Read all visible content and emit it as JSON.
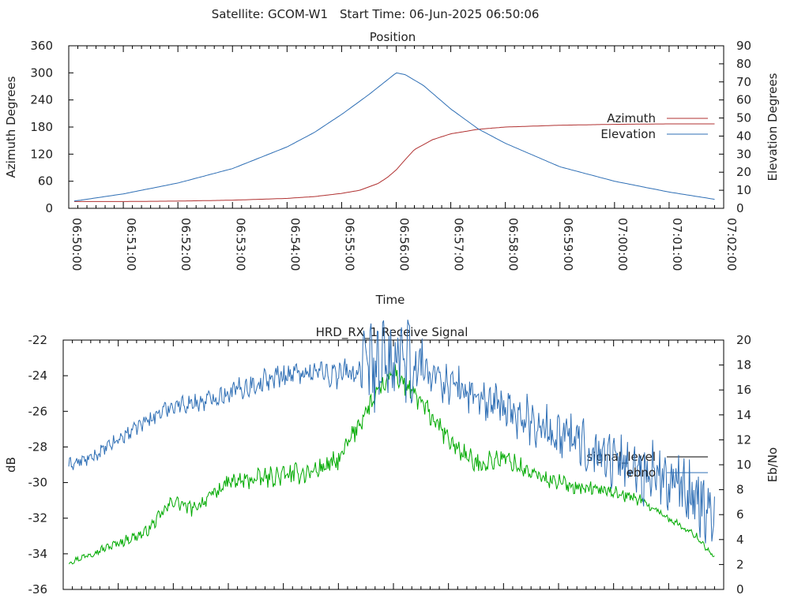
{
  "header": {
    "satellite": "Satellite: GCOM-W1",
    "start_time": "Start Time: 06-Jun-2025 06:50:06"
  },
  "chart_data": [
    {
      "type": "line",
      "title": "Position",
      "xlabel": "Time",
      "ylabel": "Azimuth Degrees",
      "y2label": "Elevation Degrees",
      "x_ticks": [
        "06:50:00",
        "06:51:00",
        "06:52:00",
        "06:53:00",
        "06:54:00",
        "06:55:00",
        "06:56:00",
        "06:57:00",
        "06:58:00",
        "06:59:00",
        "07:00:00",
        "07:01:00",
        "07:02:00"
      ],
      "xlim": [
        "06:50:00",
        "07:02:00"
      ],
      "ylim": [
        0,
        360
      ],
      "y_ticks": [
        0,
        60,
        120,
        180,
        240,
        300,
        360
      ],
      "y2lim": [
        0,
        90
      ],
      "y2_ticks": [
        0,
        10,
        20,
        30,
        40,
        50,
        60,
        70,
        80,
        90
      ],
      "legend_position": "right",
      "series": [
        {
          "name": "Azimuth",
          "axis": "y",
          "color": "#b03030",
          "x": [
            "06:50:06",
            "06:51:00",
            "06:52:00",
            "06:53:00",
            "06:54:00",
            "06:54:30",
            "06:55:00",
            "06:55:20",
            "06:55:40",
            "06:55:50",
            "06:56:00",
            "06:56:10",
            "06:56:20",
            "06:56:40",
            "06:57:00",
            "06:57:30",
            "06:58:00",
            "06:59:00",
            "07:00:00",
            "07:01:00",
            "07:01:50"
          ],
          "values": [
            15,
            15,
            16,
            18,
            22,
            26,
            33,
            40,
            55,
            68,
            85,
            108,
            130,
            152,
            165,
            175,
            180,
            184,
            186,
            187,
            187
          ]
        },
        {
          "name": "Elevation",
          "axis": "y2",
          "color": "#2f6fb5",
          "x": [
            "06:50:06",
            "06:51:00",
            "06:52:00",
            "06:53:00",
            "06:54:00",
            "06:54:30",
            "06:55:00",
            "06:55:30",
            "06:55:50",
            "06:56:00",
            "06:56:10",
            "06:56:30",
            "06:57:00",
            "06:57:30",
            "06:58:00",
            "06:59:00",
            "07:00:00",
            "07:01:00",
            "07:01:50"
          ],
          "values": [
            4,
            8,
            14,
            22,
            34,
            42,
            52,
            63,
            71,
            75,
            74,
            68,
            55,
            44,
            36,
            23,
            15,
            9,
            5
          ]
        }
      ]
    },
    {
      "type": "line",
      "title": "HRD_RX_1 Receive Signal",
      "ylabel": "dB",
      "y2label": "Eb/No",
      "x_ticks": [
        "06:50:00",
        "06:51:00",
        "06:52:00",
        "06:53:00",
        "06:54:00",
        "06:55:00",
        "06:56:00",
        "06:57:00",
        "06:58:00",
        "06:59:00",
        "07:00:00",
        "07:01:00",
        "07:02:00"
      ],
      "x_tick_labels_shown": false,
      "xlim": [
        "06:50:00",
        "07:02:00"
      ],
      "ylim": [
        -36,
        -22
      ],
      "y_ticks": [
        -36,
        -34,
        -32,
        -30,
        -28,
        -26,
        -24,
        -22
      ],
      "y2lim": [
        0,
        20
      ],
      "y2_ticks": [
        0,
        2,
        4,
        6,
        8,
        10,
        12,
        14,
        16,
        18,
        20
      ],
      "legend_position": "right",
      "series": [
        {
          "name": "signal_level",
          "axis": "y",
          "color": "#00aa00",
          "legend_color": "#000000",
          "x": [
            "06:50:06",
            "06:50:30",
            "06:51:00",
            "06:51:30",
            "06:52:00",
            "06:52:20",
            "06:52:40",
            "06:53:00",
            "06:53:30",
            "06:54:00",
            "06:54:30",
            "06:55:00",
            "06:55:30",
            "06:56:00",
            "06:56:30",
            "06:57:00",
            "06:57:30",
            "06:58:00",
            "06:58:30",
            "06:59:00",
            "06:59:30",
            "07:00:00",
            "07:00:30",
            "07:01:00",
            "07:01:30",
            "07:01:50"
          ],
          "values": [
            -34.5,
            -34.0,
            -33.4,
            -32.8,
            -31.0,
            -31.5,
            -30.8,
            -30.0,
            -29.8,
            -29.6,
            -29.4,
            -28.8,
            -26.0,
            -23.8,
            -25.5,
            -27.6,
            -29.0,
            -28.6,
            -29.5,
            -30.0,
            -30.3,
            -30.5,
            -31.0,
            -32.0,
            -33.0,
            -34.2
          ]
        },
        {
          "name": "ebno",
          "axis": "y2",
          "color": "#2f6fb5",
          "x": [
            "06:50:06",
            "06:50:30",
            "06:51:00",
            "06:51:30",
            "06:52:00",
            "06:52:30",
            "06:53:00",
            "06:53:30",
            "06:54:00",
            "06:54:30",
            "06:55:00",
            "06:55:30",
            "06:56:00",
            "06:56:30",
            "06:57:00",
            "06:57:30",
            "06:58:00",
            "06:58:30",
            "06:59:00",
            "06:59:30",
            "07:00:00",
            "07:00:30",
            "07:01:00",
            "07:01:30",
            "07:01:50"
          ],
          "values": [
            10.0,
            10.5,
            12.0,
            13.5,
            14.8,
            15.0,
            15.8,
            16.5,
            17.2,
            17.5,
            17.3,
            17.5,
            18.3,
            17.8,
            16.5,
            15.5,
            14.5,
            13.5,
            12.5,
            11.5,
            10.5,
            9.5,
            8.5,
            7.5,
            6.0
          ]
        }
      ]
    }
  ]
}
